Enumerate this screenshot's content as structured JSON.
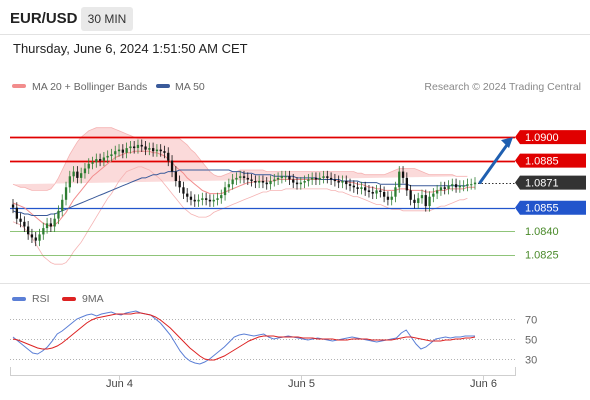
{
  "header": {
    "pair": "EUR/USD",
    "timeframe": "30 MIN"
  },
  "timestamp": "Thursday, June 6, 2024 1:51:50 AM CET",
  "legend": {
    "ma20_label": "MA 20 + Bollinger Bands",
    "ma50_label": "MA 50",
    "ma20_color": "#f28c8c",
    "ma50_color": "#3a5a9a",
    "credit": "Research © 2024 Trading Central"
  },
  "colors": {
    "resistance": "#e00000",
    "pivot": "#2255cc",
    "support": "#6ab04c",
    "candle_up": "#2e7d32",
    "candle_down": "#111111",
    "bollinger_fill": "#fbd6d6",
    "current_price_bg": "#333333",
    "arrow": "#1f5fb0"
  },
  "chart_data": [
    {
      "type": "candlestick",
      "title": "",
      "xlabel": "",
      "ylabel": "",
      "ylim": [
        1.0814,
        1.0916
      ],
      "x_ticks": [
        {
          "label": "Jun 4",
          "index": 28
        },
        {
          "label": "Jun 5",
          "index": 76
        },
        {
          "label": "Jun 6",
          "index": 124
        }
      ],
      "levels": [
        {
          "label": "1.0900",
          "value": 1.09,
          "type": "resistance"
        },
        {
          "label": "1.0885",
          "value": 1.0885,
          "type": "resistance"
        },
        {
          "label": "1.0855",
          "value": 1.0855,
          "type": "pivot"
        },
        {
          "label": "1.0840",
          "value": 1.084,
          "type": "support"
        },
        {
          "label": "1.0825",
          "value": 1.0825,
          "type": "support"
        }
      ],
      "current_price": {
        "label": "1.0871",
        "value": 1.0871
      },
      "forecast_arrow": {
        "from": 1.0871,
        "to": 1.09,
        "direction": "up"
      },
      "close": [
        1.0855,
        1.0848,
        1.0846,
        1.0843,
        1.0838,
        1.0836,
        1.0834,
        1.0838,
        1.0842,
        1.0845,
        1.0843,
        1.0848,
        1.0853,
        1.086,
        1.0868,
        1.0875,
        1.0878,
        1.0874,
        1.0877,
        1.088,
        1.0883,
        1.0884,
        1.0886,
        1.0885,
        1.0887,
        1.0888,
        1.0889,
        1.0891,
        1.0892,
        1.089,
        1.0893,
        1.0894,
        1.0893,
        1.0895,
        1.0894,
        1.0892,
        1.0893,
        1.0891,
        1.0892,
        1.0891,
        1.089,
        1.0885,
        1.0878,
        1.0872,
        1.0868,
        1.0864,
        1.0862,
        1.086,
        1.0859,
        1.086,
        1.0861,
        1.086,
        1.0859,
        1.086,
        1.0861,
        1.0863,
        1.0868,
        1.087,
        1.0873,
        1.0874,
        1.0875,
        1.0874,
        1.0873,
        1.0872,
        1.0871,
        1.0872,
        1.0871,
        1.087,
        1.0872,
        1.0873,
        1.0874,
        1.0875,
        1.0875,
        1.0873,
        1.0871,
        1.087,
        1.0871,
        1.0872,
        1.0873,
        1.0874,
        1.0873,
        1.0874,
        1.0875,
        1.0874,
        1.0873,
        1.0872,
        1.0871,
        1.0872,
        1.087,
        1.0869,
        1.0868,
        1.0867,
        1.0868,
        1.0866,
        1.0865,
        1.0864,
        1.0866,
        1.0865,
        1.0862,
        1.086,
        1.0862,
        1.0868,
        1.0878,
        1.0874,
        1.0866,
        1.086,
        1.0858,
        1.0861,
        1.0863,
        1.0856,
        1.0862,
        1.0864,
        1.0866,
        1.0868,
        1.0867,
        1.0869,
        1.087,
        1.0868,
        1.0869,
        1.0869,
        1.087,
        1.087,
        1.0871
      ],
      "ma20": [
        1.0858,
        1.0857,
        1.0856,
        1.0855,
        1.0853,
        1.0851,
        1.0849,
        1.0847,
        1.0845,
        1.0844,
        1.0843,
        1.0844,
        1.0846,
        1.0849,
        1.0852,
        1.0856,
        1.086,
        1.0863,
        1.0866,
        1.0869,
        1.0872,
        1.0875,
        1.0877,
        1.0879,
        1.0881,
        1.0883,
        1.0885,
        1.0887,
        1.0888,
        1.0889,
        1.089,
        1.089,
        1.0891,
        1.0891,
        1.0891,
        1.0891,
        1.0891,
        1.089,
        1.089,
        1.0889,
        1.0888,
        1.0886,
        1.0884,
        1.0881,
        1.0879,
        1.0877,
        1.0874,
        1.0872,
        1.087,
        1.0868,
        1.0866,
        1.0865,
        1.0864,
        1.0864,
        1.0864,
        1.0864,
        1.0865,
        1.0866,
        1.0867,
        1.0868,
        1.0869,
        1.087,
        1.0871,
        1.0871,
        1.0872,
        1.0872,
        1.0872,
        1.0872,
        1.0872,
        1.0872,
        1.0873,
        1.0873,
        1.0873,
        1.0873,
        1.0873,
        1.0873,
        1.0873,
        1.0873,
        1.0873,
        1.0873,
        1.0873,
        1.0873,
        1.0873,
        1.0873,
        1.0873,
        1.0873,
        1.0872,
        1.0872,
        1.0872,
        1.0871,
        1.0871,
        1.087,
        1.087,
        1.0869,
        1.0868,
        1.0868,
        1.0867,
        1.0867,
        1.0866,
        1.0866,
        1.0866,
        1.0866,
        1.0867,
        1.0867,
        1.0867,
        1.0866,
        1.0866,
        1.0866,
        1.0866,
        1.0865,
        1.0865,
        1.0865,
        1.0866,
        1.0866,
        1.0866,
        1.0867,
        1.0867,
        1.0867,
        1.0867,
        1.0867,
        1.0868,
        1.0868,
        1.0868
      ],
      "bollinger_upper": [
        1.087,
        1.0869,
        1.0868,
        1.0868,
        1.0867,
        1.0866,
        1.0866,
        1.0866,
        1.0866,
        1.0866,
        1.0867,
        1.087,
        1.0874,
        1.0879,
        1.0884,
        1.0889,
        1.0893,
        1.0897,
        1.09,
        1.0902,
        1.0904,
        1.0905,
        1.0906,
        1.0906,
        1.0906,
        1.0906,
        1.0906,
        1.0905,
        1.0904,
        1.0903,
        1.0902,
        1.0901,
        1.09,
        1.0899,
        1.0899,
        1.0899,
        1.0899,
        1.0899,
        1.0899,
        1.0899,
        1.0899,
        1.0899,
        1.0899,
        1.0899,
        1.0899,
        1.0897,
        1.0895,
        1.0892,
        1.089,
        1.0887,
        1.0884,
        1.0881,
        1.0878,
        1.0876,
        1.0875,
        1.0875,
        1.0876,
        1.0877,
        1.0878,
        1.0878,
        1.0879,
        1.0879,
        1.0879,
        1.0879,
        1.0879,
        1.0879,
        1.0879,
        1.0878,
        1.0878,
        1.0878,
        1.0878,
        1.0878,
        1.0878,
        1.0878,
        1.0878,
        1.0878,
        1.0878,
        1.0878,
        1.0878,
        1.0878,
        1.0878,
        1.0878,
        1.0878,
        1.0878,
        1.0878,
        1.0878,
        1.0878,
        1.0878,
        1.0878,
        1.0878,
        1.0878,
        1.0877,
        1.0877,
        1.0876,
        1.0876,
        1.0876,
        1.0876,
        1.0876,
        1.0876,
        1.0877,
        1.0878,
        1.0879,
        1.088,
        1.088,
        1.088,
        1.088,
        1.088,
        1.0879,
        1.0878,
        1.0877,
        1.0876,
        1.0876,
        1.0876,
        1.0876,
        1.0876,
        1.0876,
        1.0876,
        1.0875,
        1.0875,
        1.0875,
        1.0875
      ],
      "bollinger_lower": [
        1.0846,
        1.0845,
        1.0844,
        1.0842,
        1.0839,
        1.0836,
        1.0832,
        1.0828,
        1.0824,
        1.0822,
        1.082,
        1.0819,
        1.0819,
        1.0819,
        1.082,
        1.0823,
        1.0827,
        1.083,
        1.0833,
        1.0837,
        1.0841,
        1.0845,
        1.0849,
        1.0853,
        1.0857,
        1.0861,
        1.0864,
        1.0868,
        1.0872,
        1.0875,
        1.0878,
        1.0879,
        1.088,
        1.0881,
        1.0881,
        1.088,
        1.0879,
        1.0877,
        1.0875,
        1.0873,
        1.087,
        1.0867,
        1.0864,
        1.0861,
        1.0858,
        1.0855,
        1.0853,
        1.0851,
        1.085,
        1.0849,
        1.0849,
        1.0849,
        1.085,
        1.0852,
        1.0853,
        1.0854,
        1.0855,
        1.0856,
        1.0857,
        1.0858,
        1.0859,
        1.086,
        1.0861,
        1.0862,
        1.0863,
        1.0864,
        1.0865,
        1.0865,
        1.0866,
        1.0866,
        1.0866,
        1.0866,
        1.0867,
        1.0867,
        1.0867,
        1.0867,
        1.0867,
        1.0867,
        1.0867,
        1.0867,
        1.0867,
        1.0867,
        1.0867,
        1.0867,
        1.0866,
        1.0866,
        1.0865,
        1.0865,
        1.0864,
        1.0863,
        1.0862,
        1.0862,
        1.0861,
        1.086,
        1.0859,
        1.0858,
        1.0857,
        1.0857,
        1.0856,
        1.0855,
        1.0854,
        1.0854,
        1.0854,
        1.0853,
        1.0853,
        1.0853,
        1.0853,
        1.0853,
        1.0853,
        1.0853,
        1.0853,
        1.0854,
        1.0855,
        1.0856,
        1.0856,
        1.0857,
        1.0858,
        1.0859,
        1.086,
        1.086,
        1.0861
      ],
      "ma50": [
        1.0853,
        1.0852,
        1.0852,
        1.0851,
        1.0851,
        1.085,
        1.085,
        1.085,
        1.085,
        1.085,
        1.0851,
        1.0851,
        1.0852,
        1.0853,
        1.0854,
        1.0855,
        1.0856,
        1.0857,
        1.0858,
        1.0859,
        1.086,
        1.0861,
        1.0862,
        1.0863,
        1.0864,
        1.0865,
        1.0866,
        1.0867,
        1.0868,
        1.0869,
        1.087,
        1.0871,
        1.0872,
        1.0873,
        1.0874,
        1.0874,
        1.0875,
        1.0876,
        1.0876,
        1.0877,
        1.0877,
        1.0878,
        1.0878,
        1.0878,
        1.0879,
        1.0879,
        1.0879,
        1.0879,
        1.0879,
        1.0879,
        1.0879,
        1.0879,
        1.0879,
        1.0879,
        1.0879,
        1.0879,
        1.0879,
        1.0879,
        1.0878,
        1.0878,
        1.0878,
        1.0877,
        1.0877,
        1.0877,
        1.0876,
        1.0876,
        1.0876,
        1.0876,
        1.0876,
        1.0875,
        1.0875,
        1.0875,
        1.0875,
        1.0875,
        1.0875,
        1.0874,
        1.0874,
        1.0874,
        1.0874,
        1.0874,
        1.0874,
        1.0873,
        1.0873,
        1.0873,
        1.0873,
        1.0873,
        1.0873,
        1.0872,
        1.0872,
        1.0872,
        1.0872,
        1.0872,
        1.0871,
        1.0871,
        1.0871,
        1.0871,
        1.0871,
        1.087,
        1.087,
        1.087,
        1.087,
        1.087,
        1.087,
        1.087,
        1.087,
        1.0869,
        1.0869,
        1.0869,
        1.0869,
        1.0869,
        1.0869,
        1.0869,
        1.0869,
        1.0869,
        1.0869,
        1.0869,
        1.0869,
        1.0869,
        1.0869,
        1.0869,
        1.0869
      ]
    },
    {
      "type": "line",
      "title": "",
      "legend": [
        {
          "name": "RSI",
          "color": "#5b7fd6"
        },
        {
          "name": "9MA",
          "color": "#dd2222"
        }
      ],
      "ylim": [
        20,
        80
      ],
      "y_ticks": [
        {
          "label": "70",
          "value": 70
        },
        {
          "label": "50",
          "value": 50
        },
        {
          "label": "30",
          "value": 30
        }
      ],
      "series": [
        {
          "name": "RSI",
          "values": [
            52,
            48,
            44,
            40,
            36,
            35,
            38,
            42,
            48,
            55,
            58,
            62,
            66,
            70,
            72,
            74,
            75,
            73,
            75,
            76,
            77,
            75,
            74,
            76,
            77,
            78,
            76,
            75,
            74,
            70,
            66,
            60,
            54,
            46,
            38,
            32,
            28,
            26,
            25,
            27,
            30,
            34,
            38,
            42,
            47,
            52,
            54,
            55,
            54,
            53,
            54,
            55,
            52,
            50,
            51,
            52,
            53,
            52,
            51,
            50,
            49,
            50,
            51,
            50,
            49,
            48,
            49,
            50,
            51,
            52,
            51,
            50,
            49,
            48,
            47,
            48,
            49,
            50,
            51,
            56,
            59,
            52,
            45,
            40,
            42,
            46,
            50,
            51,
            52,
            51,
            52,
            52,
            53,
            53,
            53
          ]
        },
        {
          "name": "9MA",
          "values": [
            50,
            49,
            47,
            45,
            43,
            41,
            40,
            40,
            41,
            43,
            46,
            50,
            54,
            58,
            62,
            66,
            69,
            71,
            72,
            73,
            74,
            75,
            75,
            75,
            75,
            76,
            76,
            75,
            74,
            72,
            69,
            65,
            61,
            56,
            51,
            46,
            41,
            37,
            33,
            30,
            29,
            29,
            31,
            33,
            36,
            39,
            42,
            45,
            48,
            50,
            52,
            53,
            53,
            53,
            52,
            52,
            52,
            52,
            52,
            51,
            51,
            51,
            50,
            50,
            50,
            50,
            49,
            49,
            49,
            50,
            50,
            50,
            50,
            49,
            49,
            49,
            49,
            49,
            50,
            51,
            52,
            52,
            51,
            50,
            49,
            48,
            48,
            48,
            49,
            49,
            50,
            50,
            51,
            51,
            52
          ]
        }
      ]
    }
  ]
}
